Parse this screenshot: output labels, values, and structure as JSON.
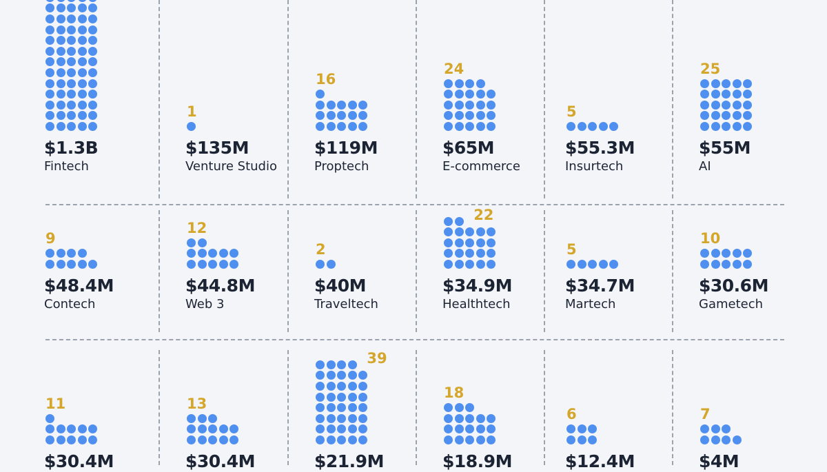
{
  "chart_data": {
    "type": "dot-matrix",
    "colors": {
      "dot": "#4f8ff0",
      "count": "#d4a72c",
      "text": "#1c2333",
      "background": "#f3f5f9"
    },
    "rows": [
      [
        {
          "name": "Fintech",
          "amount": "$1.3B",
          "count": null
        },
        {
          "name": "Venture Studio",
          "amount": "$135M",
          "count": 1
        },
        {
          "name": "Proptech",
          "amount": "$119M",
          "count": 16
        },
        {
          "name": "E-commerce",
          "amount": "$65M",
          "count": 24
        },
        {
          "name": "Insurtech",
          "amount": "$55.3M",
          "count": 5
        },
        {
          "name": "AI",
          "amount": "$55M",
          "count": 25
        }
      ],
      [
        {
          "name": "Contech",
          "amount": "$48.4M",
          "count": 9
        },
        {
          "name": "Web 3",
          "amount": "$44.8M",
          "count": 12
        },
        {
          "name": "Traveltech",
          "amount": "$40M",
          "count": 2
        },
        {
          "name": "Healthtech",
          "amount": "$34.9M",
          "count": 22
        },
        {
          "name": "Martech",
          "amount": "$34.7M",
          "count": 5
        },
        {
          "name": "Gametech",
          "amount": "$30.6M",
          "count": 10
        }
      ],
      [
        {
          "name": "",
          "amount": "$30.4M",
          "count": 11
        },
        {
          "name": "",
          "amount": "$30.4M",
          "count": 13
        },
        {
          "name": "",
          "amount": "$21.9M",
          "count": 39
        },
        {
          "name": "",
          "amount": "$18.9M",
          "count": 18
        },
        {
          "name": "",
          "amount": "$12.4M",
          "count": 6
        },
        {
          "name": "",
          "amount": "$4M",
          "count": 7
        }
      ]
    ]
  }
}
